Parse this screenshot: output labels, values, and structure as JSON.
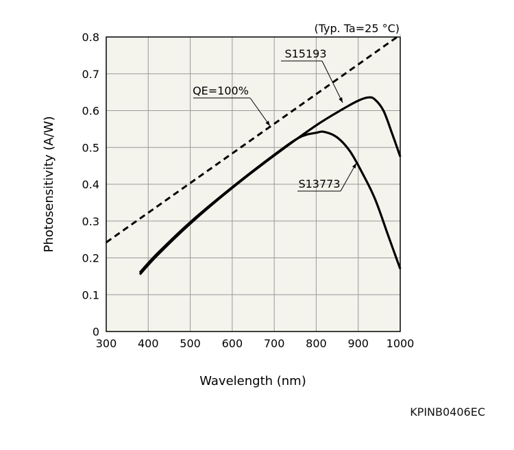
{
  "chart_data": {
    "type": "line",
    "condition_note": "(Typ. Ta=25 °C)",
    "xlabel": "Wavelength (nm)",
    "ylabel": "Photosensitivity (A/W)",
    "xlim": [
      300,
      1000
    ],
    "ylim": [
      0,
      0.8
    ],
    "xticks": [
      "300",
      "400",
      "500",
      "600",
      "700",
      "800",
      "900",
      "1000"
    ],
    "yticks": [
      "0",
      "0.1",
      "0.2",
      "0.3",
      "0.4",
      "0.5",
      "0.6",
      "0.7",
      "0.8"
    ],
    "grid": true,
    "series": [
      {
        "name": "QE=100%",
        "style": "dashed",
        "points": [
          [
            300,
            0.242
          ],
          [
            1000,
            0.806
          ]
        ]
      },
      {
        "name": "S15193",
        "style": "solid",
        "points": [
          [
            380,
            0.155
          ],
          [
            420,
            0.205
          ],
          [
            500,
            0.293
          ],
          [
            600,
            0.39
          ],
          [
            700,
            0.478
          ],
          [
            800,
            0.56
          ],
          [
            860,
            0.602
          ],
          [
            900,
            0.627
          ],
          [
            925,
            0.636
          ],
          [
            940,
            0.63
          ],
          [
            960,
            0.6
          ],
          [
            980,
            0.54
          ],
          [
            1000,
            0.475
          ]
        ]
      },
      {
        "name": "S13773",
        "style": "solid",
        "points": [
          [
            380,
            0.16
          ],
          [
            420,
            0.21
          ],
          [
            500,
            0.297
          ],
          [
            600,
            0.392
          ],
          [
            700,
            0.48
          ],
          [
            760,
            0.527
          ],
          [
            800,
            0.54
          ],
          [
            820,
            0.542
          ],
          [
            850,
            0.527
          ],
          [
            880,
            0.49
          ],
          [
            910,
            0.43
          ],
          [
            940,
            0.36
          ],
          [
            970,
            0.265
          ],
          [
            1000,
            0.17
          ]
        ]
      }
    ]
  },
  "figure_code": "KPINB0406EC",
  "colors": {
    "plot_bg": "#f4f3ec",
    "grid": "#999999",
    "line": "#000000"
  }
}
